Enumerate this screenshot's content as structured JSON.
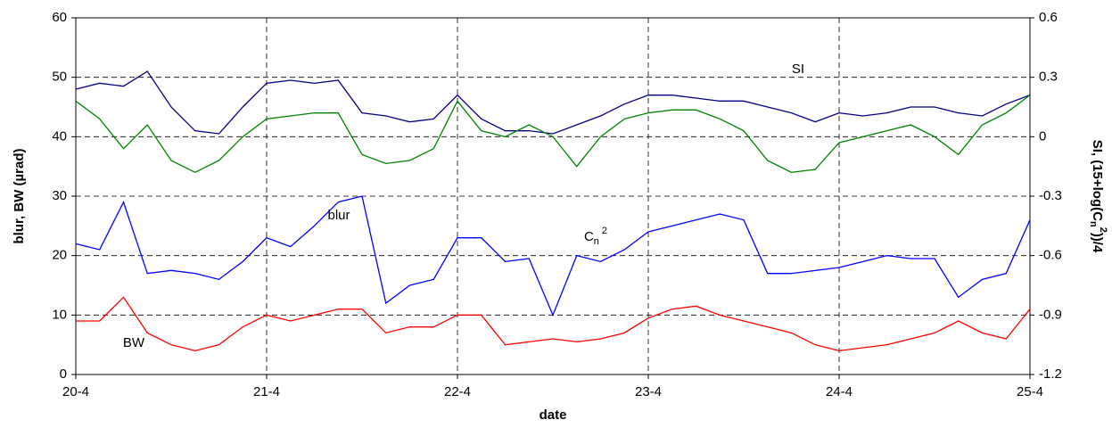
{
  "chart_data": {
    "type": "line",
    "xlabel": "date",
    "ylabel": "blur, BW (µrad)",
    "y2label": {
      "main": "SI, (15+log(C",
      "sub": "n",
      "sup": "2",
      "end": "))/4"
    },
    "xlim": [
      20,
      25
    ],
    "xticks": [
      {
        "value": 20,
        "label": "20-4"
      },
      {
        "value": 21,
        "label": "21-4"
      },
      {
        "value": 22,
        "label": "22-4"
      },
      {
        "value": 23,
        "label": "23-4"
      },
      {
        "value": 24,
        "label": "24-4"
      },
      {
        "value": 25,
        "label": "25-4"
      }
    ],
    "ylim": [
      0,
      60
    ],
    "yticks": [
      0,
      10,
      20,
      30,
      40,
      50,
      60
    ],
    "y2lim": [
      -1.2,
      0.6
    ],
    "y2ticks": [
      -1.2,
      -0.9,
      -0.6,
      -0.3,
      0,
      0.3,
      0.6
    ],
    "grid": true,
    "x": [
      20,
      20.125,
      20.25,
      20.375,
      20.5,
      20.625,
      20.75,
      20.875,
      21,
      21.125,
      21.25,
      21.375,
      21.5,
      21.625,
      21.75,
      21.875,
      22,
      22.125,
      22.25,
      22.375,
      22.5,
      22.625,
      22.75,
      22.875,
      23,
      23.125,
      23.25,
      23.375,
      23.5,
      23.625,
      23.75,
      23.875,
      24,
      24.125,
      24.25,
      24.375,
      24.5,
      24.625,
      24.75,
      24.875,
      25
    ],
    "series": [
      {
        "name": "SI",
        "color": "#000080",
        "axis": "y2",
        "values": [
          0.24,
          0.27,
          0.255,
          0.33,
          0.15,
          0.03,
          0.015,
          0.15,
          0.27,
          0.285,
          0.27,
          0.285,
          0.12,
          0.105,
          0.075,
          0.09,
          0.21,
          0.09,
          0.03,
          0.03,
          0.015,
          0.06,
          0.105,
          0.165,
          0.21,
          0.21,
          0.195,
          0.18,
          0.18,
          0.15,
          0.12,
          0.075,
          0.12,
          0.105,
          0.12,
          0.15,
          0.15,
          0.12,
          0.105,
          0.165,
          0.21
        ]
      },
      {
        "name": "C",
        "name_sub": "n",
        "name_sup": "2",
        "color": "#008000",
        "axis": "y2",
        "values": [
          0.18,
          0.09,
          -0.06,
          0.06,
          -0.12,
          -0.18,
          -0.12,
          0,
          0.09,
          0.105,
          0.12,
          0.12,
          -0.09,
          -0.135,
          -0.12,
          -0.06,
          0.18,
          0.03,
          0,
          0.06,
          0,
          -0.15,
          0,
          0.09,
          0.12,
          0.135,
          0.135,
          0.09,
          0.03,
          -0.12,
          -0.18,
          -0.165,
          -0.03,
          0,
          0.03,
          0.06,
          0,
          -0.09,
          0.06,
          0.12,
          0.21
        ]
      },
      {
        "name": "blur",
        "color": "#0000ff",
        "values": [
          22,
          21,
          29,
          17,
          17.5,
          17,
          16,
          19,
          23,
          21.5,
          25,
          29,
          30,
          12,
          15,
          16,
          23,
          23,
          19,
          19.5,
          10,
          20,
          19,
          21,
          24,
          25,
          26,
          27,
          26,
          17,
          17,
          17.5,
          18,
          19,
          20,
          19.5,
          19.5,
          13,
          16,
          17,
          26
        ]
      },
      {
        "name": "BW",
        "color": "#ff0000",
        "values": [
          9,
          9,
          13,
          7,
          5,
          4,
          5,
          8,
          10,
          9,
          10,
          11,
          11,
          7,
          8,
          8,
          10,
          10,
          5,
          5.5,
          6,
          5.5,
          6,
          7,
          9.5,
          11,
          11.5,
          10,
          9,
          8,
          7,
          5,
          4,
          4.5,
          5,
          6,
          7,
          9,
          7,
          6,
          11
        ]
      }
    ]
  }
}
